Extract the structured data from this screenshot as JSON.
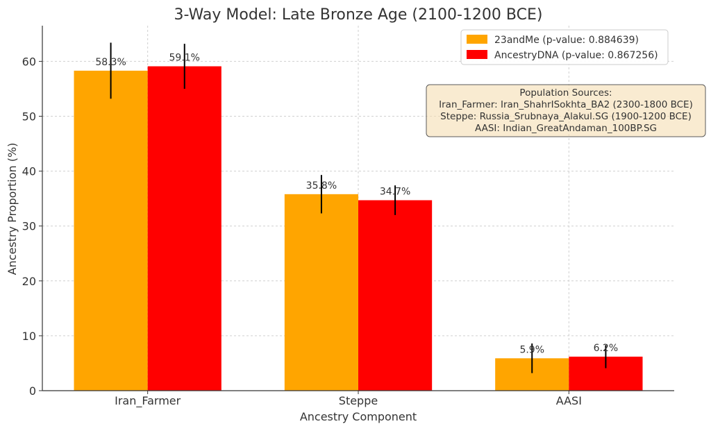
{
  "chart_data": {
    "type": "bar",
    "title": "3-Way Model: Late Bronze Age (2100-1200 BCE)",
    "xlabel": "Ancestry Component",
    "ylabel": "Ancestry Proportion (%)",
    "categories": [
      "Iran_Farmer",
      "Steppe",
      "AASI"
    ],
    "ylim": [
      0,
      66.5
    ],
    "yticks": [
      0,
      10,
      20,
      30,
      40,
      50,
      60
    ],
    "grid": true,
    "legend_position": "top-right",
    "series": [
      {
        "name": "23andMe (p-value: 0.884639)",
        "color": "#FFA500",
        "values": [
          58.3,
          35.8,
          5.9
        ],
        "errors": [
          5.1,
          3.5,
          2.7
        ],
        "labels": [
          "58.3%",
          "35.8%",
          "5.9%"
        ]
      },
      {
        "name": "AncestryDNA (p-value: 0.867256)",
        "color": "#FF0000",
        "values": [
          59.1,
          34.7,
          6.2
        ],
        "errors": [
          4.1,
          2.7,
          2.1
        ],
        "labels": [
          "59.1%",
          "34.7%",
          "6.2%"
        ]
      }
    ],
    "annotation": {
      "lines": [
        "Population Sources:",
        "Iran_Farmer: Iran_ShahrISokhta_BA2 (2300-1800 BCE)",
        "Steppe: Russia_Srubnaya_Alakul.SG (1900-1200 BCE)",
        "AASI: Indian_GreatAndaman_100BP.SG"
      ],
      "background": "#F5DEB3"
    }
  }
}
